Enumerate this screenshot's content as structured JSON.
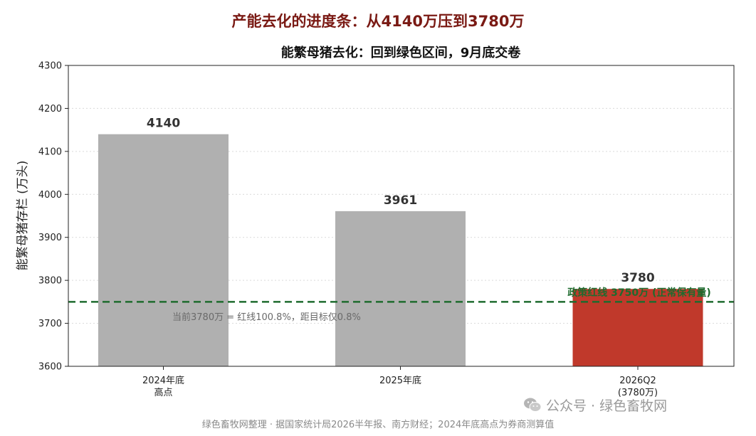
{
  "supertitle": "产能去化的进度条：从4140万压到3780万",
  "chart_data": {
    "type": "bar",
    "title": "能繁母猪去化：回到绿色区间，9月底交卷",
    "ylabel": "能繁母猪存栏 (万头)",
    "xlabel": "",
    "ylim": [
      3600,
      4300
    ],
    "yticks": [
      3600,
      3700,
      3800,
      3900,
      4000,
      4100,
      4200,
      4300
    ],
    "grid": true,
    "categories": [
      {
        "line1": "2024年底",
        "line2": "高点"
      },
      {
        "line1": "2025年底",
        "line2": ""
      },
      {
        "line1": "2026Q2",
        "line2": "(3780万)"
      }
    ],
    "values": [
      4140,
      3961,
      3780
    ],
    "value_labels": [
      "4140",
      "3961",
      "3780"
    ],
    "bar_colors": [
      "#b0b0b0",
      "#b0b0b0",
      "#c0392b"
    ],
    "reference_line": {
      "value": 3750,
      "label": "政策红线 3750万 (正常保有量)",
      "color": "#1e6b2e"
    },
    "annotation": "当前3780万 = 红线100.8%，距目标仅0.8%"
  },
  "source": "绿色畜牧网整理 · 据国家统计局2026半年报、南方财经；2024年底高点为券商测算值",
  "watermark": "公众号 · 绿色畜牧网"
}
